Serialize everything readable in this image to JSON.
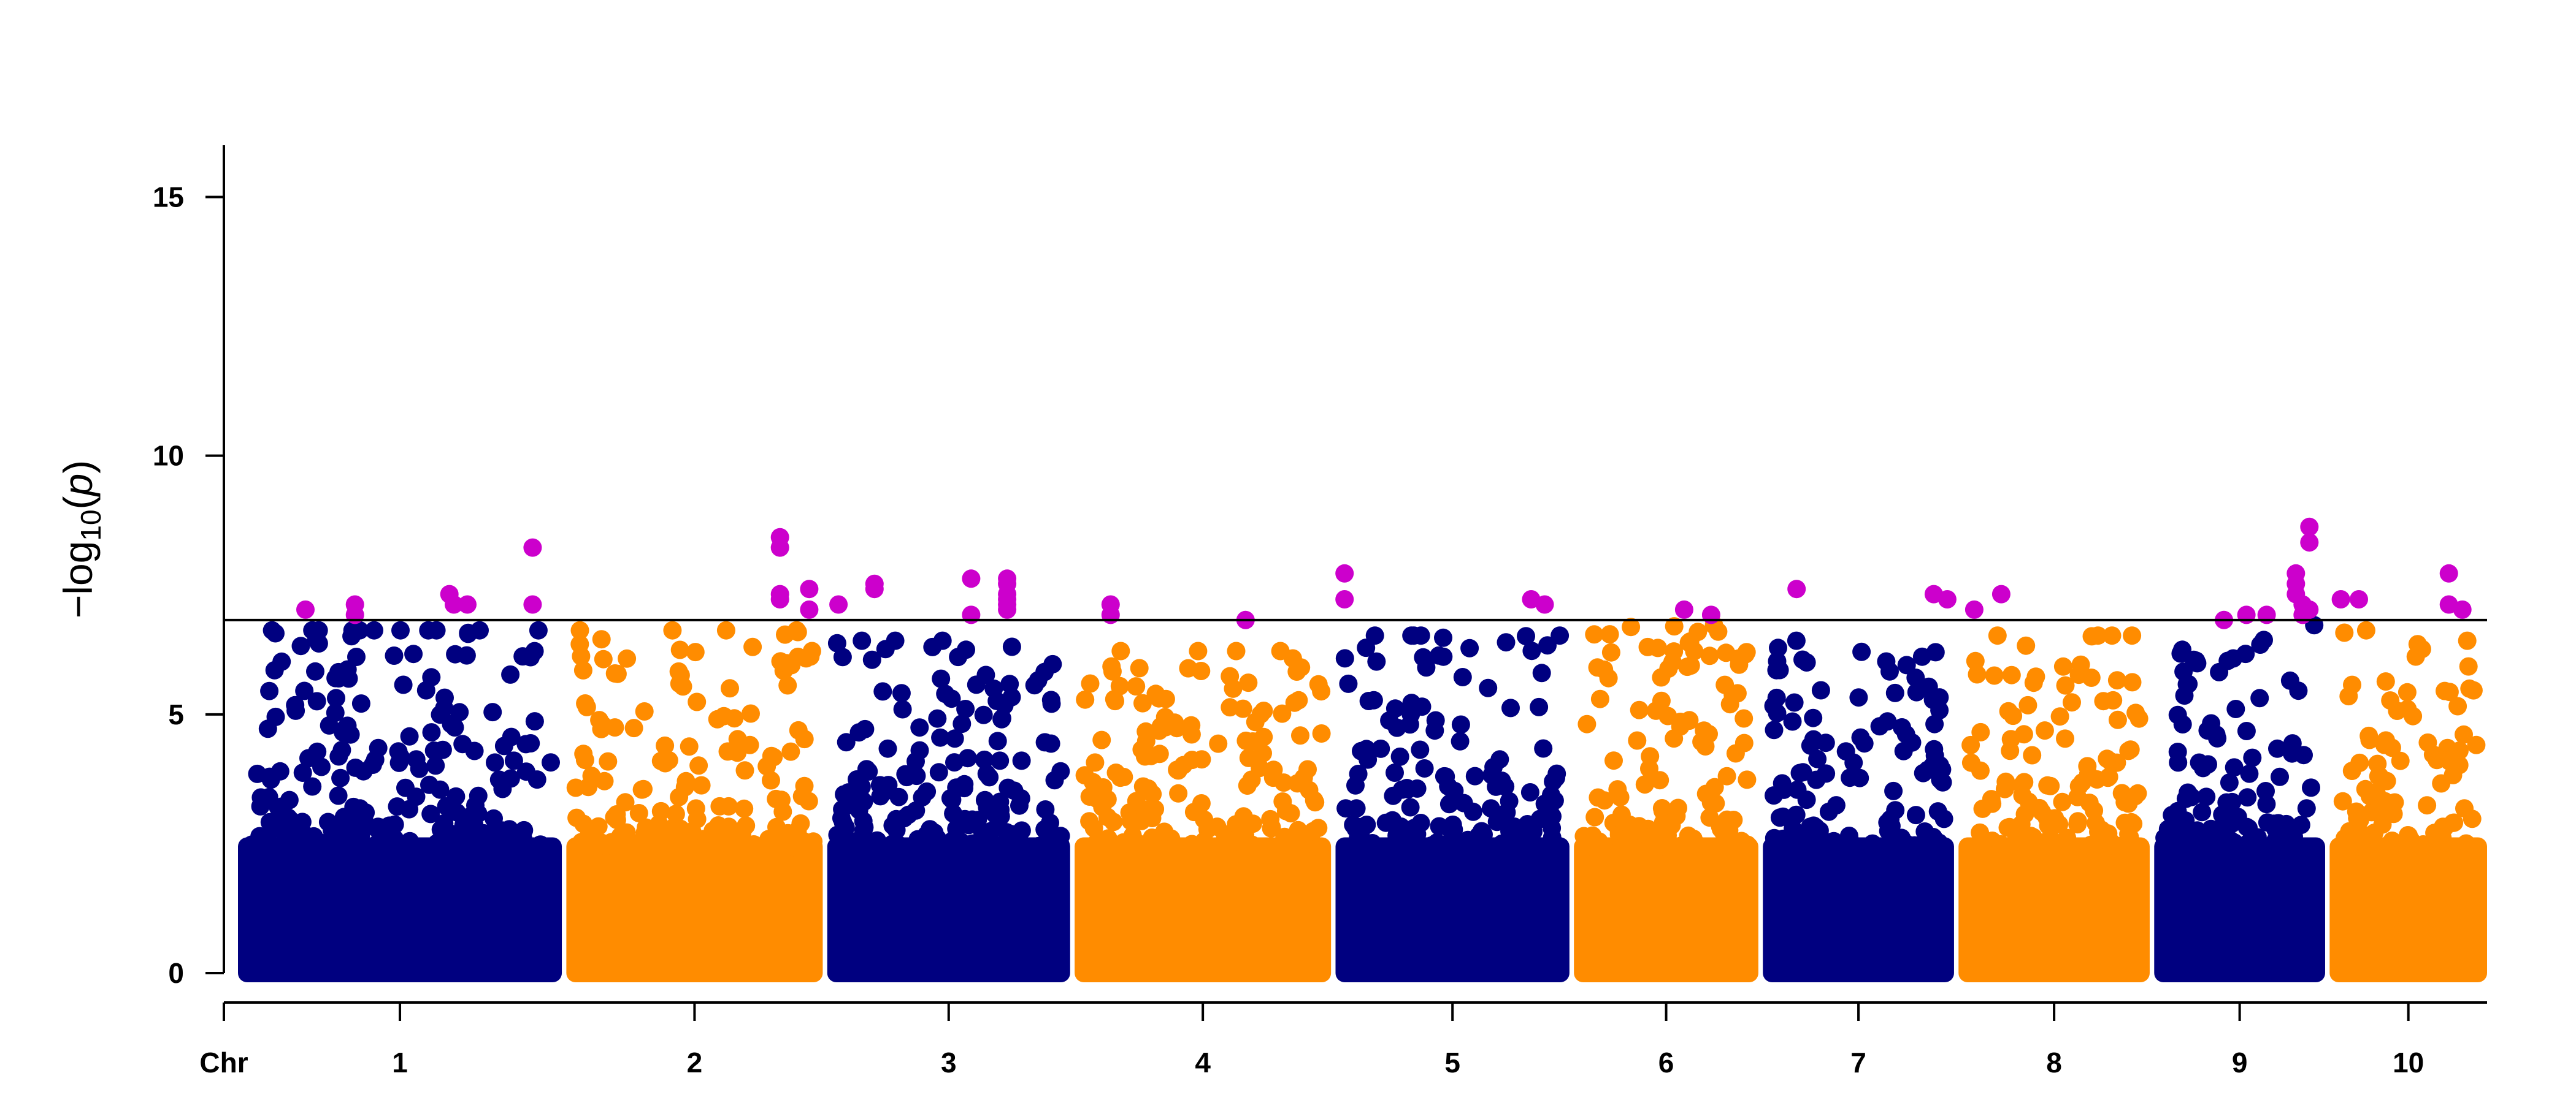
{
  "chart_data": {
    "type": "scatter",
    "subtype": "manhattan",
    "ylabel": "−log10(p)",
    "ylabel_parts": {
      "prefix": "−log",
      "subscript": "10",
      "open": "(",
      "var": "p",
      "close": ")"
    },
    "x_axis_lead_label": "Chr",
    "y_ticks": [
      0,
      5,
      10,
      15
    ],
    "y_tick_labels": [
      "0",
      "5",
      "10",
      "15"
    ],
    "ylim": [
      0,
      16
    ],
    "threshold": 6.8,
    "grid": false,
    "legend": "none",
    "colors": {
      "odd": "#000080",
      "even": "#FF8C00",
      "significant": "#CC00CC",
      "threshold_line": "#000000"
    },
    "chromosomes": [
      {
        "label": "1",
        "start": 0.0,
        "end": 0.144,
        "max": 6.6,
        "peaks": [
          [
            0.03,
            7.0
          ],
          [
            0.052,
            7.1
          ],
          [
            0.052,
            6.9
          ],
          [
            0.094,
            7.3
          ],
          [
            0.096,
            7.1
          ],
          [
            0.102,
            7.1
          ],
          [
            0.131,
            8.2
          ],
          [
            0.131,
            7.1
          ]
        ]
      },
      {
        "label": "2",
        "start": 0.146,
        "end": 0.26,
        "max": 6.6,
        "peaks": [
          [
            0.241,
            8.4
          ],
          [
            0.241,
            8.2
          ],
          [
            0.241,
            7.3
          ],
          [
            0.241,
            7.2
          ],
          [
            0.254,
            7.4
          ],
          [
            0.254,
            7.0
          ]
        ]
      },
      {
        "label": "3",
        "start": 0.262,
        "end": 0.37,
        "max": 6.4,
        "peaks": [
          [
            0.267,
            7.1
          ],
          [
            0.283,
            7.5
          ],
          [
            0.283,
            7.4
          ],
          [
            0.326,
            7.6
          ],
          [
            0.326,
            6.9
          ],
          [
            0.342,
            7.6
          ],
          [
            0.342,
            7.5
          ],
          [
            0.342,
            7.3
          ],
          [
            0.342,
            7.2
          ],
          [
            0.342,
            7.1
          ],
          [
            0.342,
            7.0
          ]
        ]
      },
      {
        "label": "4",
        "start": 0.372,
        "end": 0.486,
        "max": 6.2,
        "peaks": [
          [
            0.388,
            7.1
          ],
          [
            0.388,
            6.9
          ],
          [
            0.448,
            6.8
          ]
        ]
      },
      {
        "label": "5",
        "start": 0.488,
        "end": 0.592,
        "max": 6.5,
        "peaks": [
          [
            0.492,
            7.7
          ],
          [
            0.492,
            7.2
          ],
          [
            0.575,
            7.2
          ],
          [
            0.581,
            7.1
          ]
        ]
      },
      {
        "label": "6",
        "start": 0.594,
        "end": 0.676,
        "max": 6.7,
        "peaks": [
          [
            0.643,
            7.0
          ],
          [
            0.655,
            6.9
          ]
        ]
      },
      {
        "label": "7",
        "start": 0.678,
        "end": 0.763,
        "max": 6.4,
        "peaks": [
          [
            0.693,
            7.4
          ],
          [
            0.754,
            7.3
          ],
          [
            0.76,
            7.2
          ]
        ]
      },
      {
        "label": "8",
        "start": 0.765,
        "end": 0.85,
        "max": 6.5,
        "peaks": [
          [
            0.772,
            7.0
          ],
          [
            0.784,
            7.3
          ]
        ]
      },
      {
        "label": "9",
        "start": 0.852,
        "end": 0.928,
        "max": 6.7,
        "peaks": [
          [
            0.883,
            6.8
          ],
          [
            0.893,
            6.9
          ],
          [
            0.902,
            6.9
          ],
          [
            0.915,
            7.7
          ],
          [
            0.915,
            7.5
          ],
          [
            0.915,
            7.3
          ],
          [
            0.918,
            7.1
          ],
          [
            0.918,
            6.9
          ],
          [
            0.921,
            8.6
          ],
          [
            0.921,
            8.3
          ],
          [
            0.921,
            7.0
          ]
        ]
      },
      {
        "label": "10",
        "start": 0.93,
        "end": 1.0,
        "max": 6.6,
        "peaks": [
          [
            0.935,
            7.2
          ],
          [
            0.943,
            7.2
          ],
          [
            0.983,
            7.7
          ],
          [
            0.983,
            7.1
          ],
          [
            0.989,
            7.0
          ]
        ]
      }
    ]
  }
}
